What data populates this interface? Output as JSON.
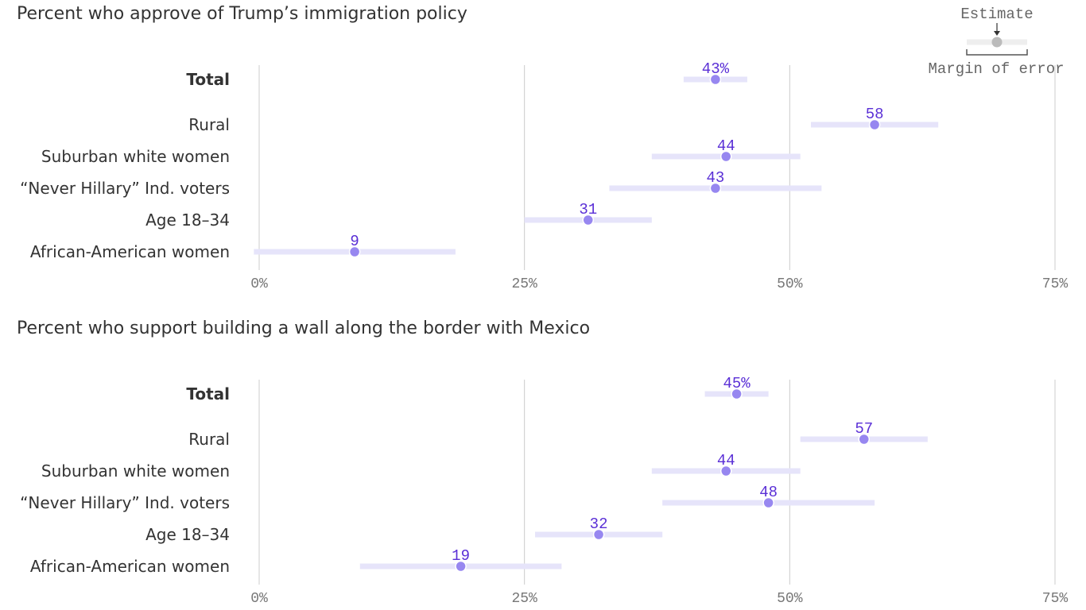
{
  "colors": {
    "bar": "#e6e4fa",
    "dot": "#9787f0",
    "label": "#5a2fd6",
    "grid": "#cccccc",
    "legend_dot": "#bbbbbb",
    "legend_bar": "#eeeeee"
  },
  "legend": {
    "estimate": "Estimate",
    "margin": "Margin of error"
  },
  "chart_data": [
    {
      "type": "dot-range",
      "title": "Percent who approve of Trump’s immigration policy",
      "xlim": [
        0,
        75
      ],
      "ticks": [
        "0%",
        "25%",
        "50%",
        "75%"
      ],
      "tick_values": [
        0,
        25,
        50,
        75
      ],
      "grid": true,
      "categories": [
        "Total",
        "Rural",
        "Suburban white women",
        "“Never Hillary” Ind. voters",
        "Age 18–34",
        "African-American women"
      ],
      "values": [
        43,
        58,
        44,
        43,
        31,
        9
      ],
      "value_labels": [
        "43%",
        "58",
        "44",
        "43",
        "31",
        "9"
      ],
      "low": [
        40,
        52,
        37,
        33,
        25,
        -0.5
      ],
      "high": [
        46,
        64,
        51,
        53,
        37,
        18.5
      ]
    },
    {
      "type": "dot-range",
      "title": "Percent who support building a wall along the border with Mexico",
      "xlim": [
        0,
        75
      ],
      "ticks": [
        "0%",
        "25%",
        "50%",
        "75%"
      ],
      "tick_values": [
        0,
        25,
        50,
        75
      ],
      "grid": true,
      "categories": [
        "Total",
        "Rural",
        "Suburban white women",
        "“Never Hillary” Ind. voters",
        "Age 18–34",
        "African-American women"
      ],
      "values": [
        45,
        57,
        44,
        48,
        32,
        19
      ],
      "value_labels": [
        "45%",
        "57",
        "44",
        "48",
        "32",
        "19"
      ],
      "low": [
        42,
        51,
        37,
        38,
        26,
        9.5
      ],
      "high": [
        48,
        63,
        51,
        58,
        38,
        28.5
      ]
    }
  ]
}
